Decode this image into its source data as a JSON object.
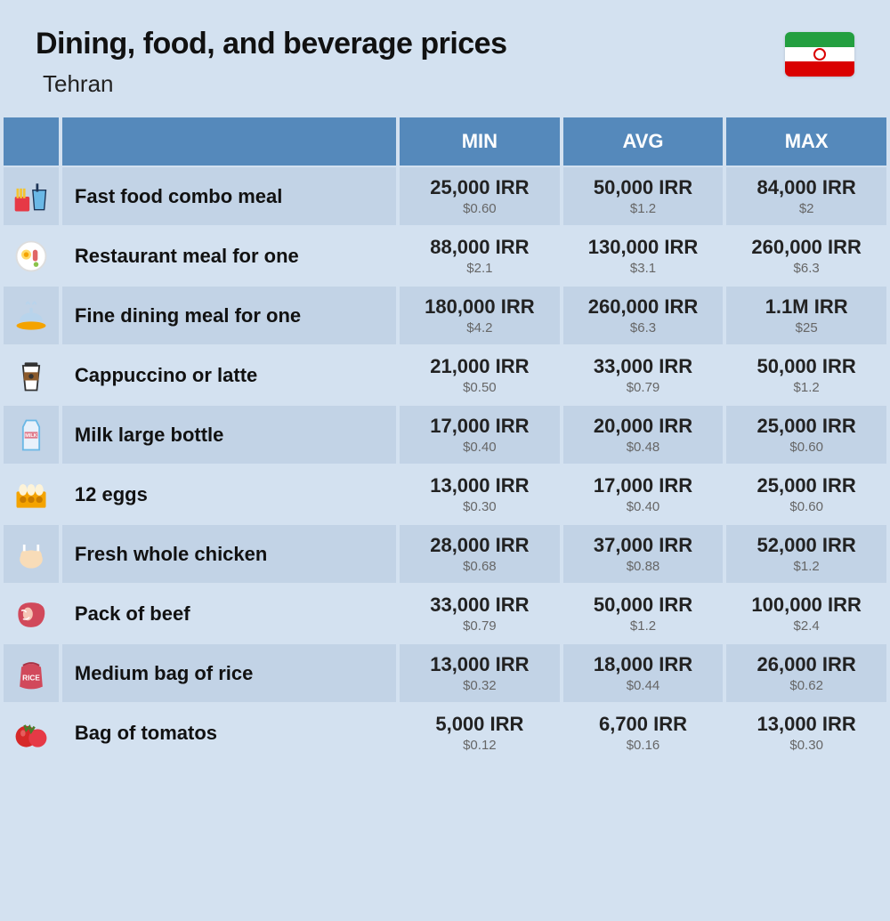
{
  "header": {
    "title": "Dining, food, and beverage prices",
    "city": "Tehran"
  },
  "flag": {
    "green": "#239f40",
    "white": "#ffffff",
    "red": "#da0000"
  },
  "columns": {
    "min": "MIN",
    "avg": "AVG",
    "max": "MAX"
  },
  "colors": {
    "page_bg": "#d3e1f0",
    "header_bg": "#5589bb",
    "header_text": "#ffffff",
    "row_odd": "#c2d3e6",
    "row_even": "#d3e1f0",
    "text_main": "#222222",
    "text_sub": "#666666"
  },
  "rows": [
    {
      "icon": "fast-food-icon",
      "label": "Fast food combo meal",
      "min": {
        "irr": "25,000 IRR",
        "usd": "$0.60"
      },
      "avg": {
        "irr": "50,000 IRR",
        "usd": "$1.2"
      },
      "max": {
        "irr": "84,000 IRR",
        "usd": "$2"
      }
    },
    {
      "icon": "restaurant-meal-icon",
      "label": "Restaurant meal for one",
      "min": {
        "irr": "88,000 IRR",
        "usd": "$2.1"
      },
      "avg": {
        "irr": "130,000 IRR",
        "usd": "$3.1"
      },
      "max": {
        "irr": "260,000 IRR",
        "usd": "$6.3"
      }
    },
    {
      "icon": "fine-dining-icon",
      "label": "Fine dining meal for one",
      "min": {
        "irr": "180,000 IRR",
        "usd": "$4.2"
      },
      "avg": {
        "irr": "260,000 IRR",
        "usd": "$6.3"
      },
      "max": {
        "irr": "1.1M IRR",
        "usd": "$25"
      }
    },
    {
      "icon": "coffee-icon",
      "label": "Cappuccino or latte",
      "min": {
        "irr": "21,000 IRR",
        "usd": "$0.50"
      },
      "avg": {
        "irr": "33,000 IRR",
        "usd": "$0.79"
      },
      "max": {
        "irr": "50,000 IRR",
        "usd": "$1.2"
      }
    },
    {
      "icon": "milk-icon",
      "label": "Milk large bottle",
      "min": {
        "irr": "17,000 IRR",
        "usd": "$0.40"
      },
      "avg": {
        "irr": "20,000 IRR",
        "usd": "$0.48"
      },
      "max": {
        "irr": "25,000 IRR",
        "usd": "$0.60"
      }
    },
    {
      "icon": "eggs-icon",
      "label": "12 eggs",
      "min": {
        "irr": "13,000 IRR",
        "usd": "$0.30"
      },
      "avg": {
        "irr": "17,000 IRR",
        "usd": "$0.40"
      },
      "max": {
        "irr": "25,000 IRR",
        "usd": "$0.60"
      }
    },
    {
      "icon": "chicken-icon",
      "label": "Fresh whole chicken",
      "min": {
        "irr": "28,000 IRR",
        "usd": "$0.68"
      },
      "avg": {
        "irr": "37,000 IRR",
        "usd": "$0.88"
      },
      "max": {
        "irr": "52,000 IRR",
        "usd": "$1.2"
      }
    },
    {
      "icon": "beef-icon",
      "label": "Pack of beef",
      "min": {
        "irr": "33,000 IRR",
        "usd": "$0.79"
      },
      "avg": {
        "irr": "50,000 IRR",
        "usd": "$1.2"
      },
      "max": {
        "irr": "100,000 IRR",
        "usd": "$2.4"
      }
    },
    {
      "icon": "rice-icon",
      "label": "Medium bag of rice",
      "min": {
        "irr": "13,000 IRR",
        "usd": "$0.32"
      },
      "avg": {
        "irr": "18,000 IRR",
        "usd": "$0.44"
      },
      "max": {
        "irr": "26,000 IRR",
        "usd": "$0.62"
      }
    },
    {
      "icon": "tomato-icon",
      "label": "Bag of tomatos",
      "min": {
        "irr": "5,000 IRR",
        "usd": "$0.12"
      },
      "avg": {
        "irr": "6,700 IRR",
        "usd": "$0.16"
      },
      "max": {
        "irr": "13,000 IRR",
        "usd": "$0.30"
      }
    }
  ]
}
